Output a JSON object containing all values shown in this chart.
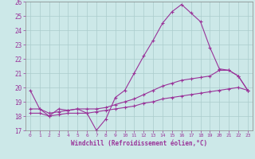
{
  "xlabel": "Windchill (Refroidissement éolien,°C)",
  "xlim": [
    -0.5,
    23.5
  ],
  "ylim": [
    17,
    26
  ],
  "yticks": [
    17,
    18,
    19,
    20,
    21,
    22,
    23,
    24,
    25,
    26
  ],
  "xticks": [
    0,
    1,
    2,
    3,
    4,
    5,
    6,
    7,
    8,
    9,
    10,
    11,
    12,
    13,
    14,
    15,
    16,
    17,
    18,
    19,
    20,
    21,
    22,
    23
  ],
  "background_color": "#cce8e8",
  "grid_color": "#aacccc",
  "line_color": "#993399",
  "line1_x": [
    0,
    1,
    2,
    3,
    4,
    5,
    6,
    7,
    8,
    9,
    10,
    11,
    12,
    13,
    14,
    15,
    16,
    17,
    18,
    19,
    20,
    21,
    22,
    23
  ],
  "line1_y": [
    19.8,
    18.5,
    18.0,
    18.5,
    18.4,
    18.5,
    18.2,
    17.0,
    17.8,
    19.3,
    19.8,
    21.0,
    22.2,
    23.3,
    24.5,
    25.3,
    25.8,
    25.2,
    24.6,
    22.8,
    21.3,
    21.2,
    20.8,
    19.8
  ],
  "line2_x": [
    0,
    1,
    2,
    3,
    4,
    5,
    6,
    7,
    8,
    9,
    10,
    11,
    12,
    13,
    14,
    15,
    16,
    17,
    18,
    19,
    20,
    21,
    22,
    23
  ],
  "line2_y": [
    18.5,
    18.5,
    18.2,
    18.3,
    18.4,
    18.5,
    18.5,
    18.5,
    18.6,
    18.8,
    19.0,
    19.2,
    19.5,
    19.8,
    20.1,
    20.3,
    20.5,
    20.6,
    20.7,
    20.8,
    21.2,
    21.2,
    20.8,
    19.8
  ],
  "line3_x": [
    0,
    1,
    2,
    3,
    4,
    5,
    6,
    7,
    8,
    9,
    10,
    11,
    12,
    13,
    14,
    15,
    16,
    17,
    18,
    19,
    20,
    21,
    22,
    23
  ],
  "line3_y": [
    18.2,
    18.2,
    18.0,
    18.1,
    18.2,
    18.2,
    18.2,
    18.3,
    18.4,
    18.5,
    18.6,
    18.7,
    18.9,
    19.0,
    19.2,
    19.3,
    19.4,
    19.5,
    19.6,
    19.7,
    19.8,
    19.9,
    20.0,
    19.8
  ]
}
